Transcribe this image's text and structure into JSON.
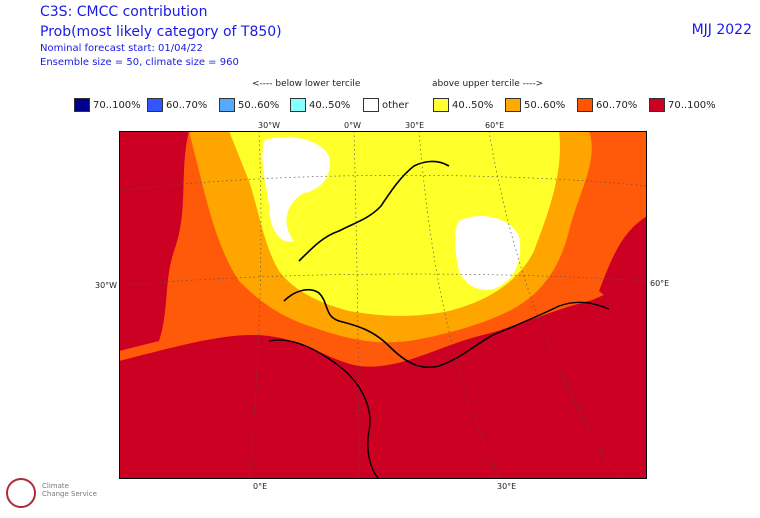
{
  "header": {
    "line1": "C3S: CMCC contribution",
    "line2": "Prob(most likely category of T850)",
    "line3": "Nominal forecast start: 01/04/22",
    "line4": "Ensemble size = 50, climate size = 960",
    "season": "MJJ 2022"
  },
  "tercile": {
    "below": "<---- below lower tercile",
    "above": "above upper tercile ---->"
  },
  "legend": [
    {
      "label": "70..100%",
      "color": "#00008c"
    },
    {
      "label": "60..70%",
      "color": "#3355ff"
    },
    {
      "label": "50..60%",
      "color": "#55aaff"
    },
    {
      "label": "40..50%",
      "color": "#88ffff"
    },
    {
      "label": "other",
      "color": "#ffffff"
    },
    {
      "label": "40..50%",
      "color": "#ffff33"
    },
    {
      "label": "50..60%",
      "color": "#ffaa00"
    },
    {
      "label": "60..70%",
      "color": "#ff5500"
    },
    {
      "label": "70..100%",
      "color": "#cc0022"
    }
  ],
  "grid_labels": {
    "top": [
      "30°W",
      "0°W",
      "30°E",
      "60°E"
    ],
    "left": "30°W",
    "right": "60°E",
    "bottom": [
      "0°E",
      "30°E"
    ]
  },
  "logo": {
    "line1": "Climate",
    "line2": "Change Service"
  }
}
